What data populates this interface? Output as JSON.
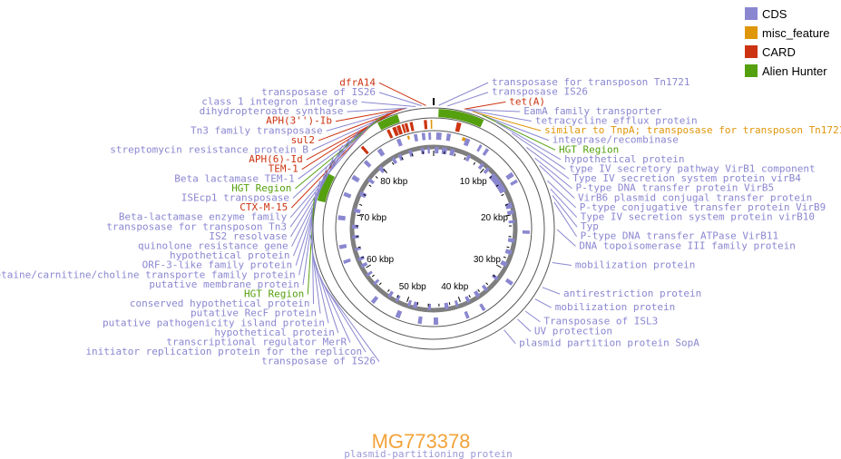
{
  "title": "MG773378",
  "subtitle": "plasmid-partitioning protein",
  "colors": {
    "cds": "#8a87d0",
    "misc": "#e0960a",
    "card": "#cc3311",
    "alien": "#55a00f",
    "title": "#f2a33a",
    "backbone": "#7f7f7f"
  },
  "legend": [
    {
      "label": "CDS",
      "type": "cds"
    },
    {
      "label": "misc_feature",
      "type": "misc"
    },
    {
      "label": "CARD",
      "type": "card"
    },
    {
      "label": "Alien Hunter",
      "type": "alien"
    }
  ],
  "kbp_marks": [
    {
      "label": "10 kbp",
      "kbp": 10
    },
    {
      "label": "20 kbp",
      "kbp": 20
    },
    {
      "label": "30 kbp",
      "kbp": 30
    },
    {
      "label": "40 kbp",
      "kbp": 40
    },
    {
      "label": "50 kbp",
      "kbp": 50
    },
    {
      "label": "60 kbp",
      "kbp": 60
    },
    {
      "label": "70 kbp",
      "kbp": 70
    },
    {
      "label": "80 kbp",
      "kbp": 80
    }
  ],
  "labels": [
    {
      "text": "transposase of IS26",
      "type": "cds",
      "pos": 88.6
    },
    {
      "text": "transposase IS26",
      "type": "cds",
      "pos": 1.6
    },
    {
      "text": "APH(3'')-Ib",
      "type": "card",
      "pos": 86.7
    },
    {
      "text": "dihydropteroate synthase",
      "type": "cds",
      "pos": 86.9
    },
    {
      "text": "class 1 integron integrase",
      "type": "cds",
      "pos": 87.9
    },
    {
      "text": "EamA family transporter",
      "type": "cds",
      "pos": 3.8
    },
    {
      "text": "tet(A)",
      "type": "card",
      "pos": 3.6
    },
    {
      "text": "transposase for transposon Tn1721",
      "type": "cds",
      "pos": 0.6
    },
    {
      "text": "streptomycin resistance protein B",
      "type": "cds",
      "pos": 85.9
    },
    {
      "text": "integrase/recombinase",
      "type": "cds",
      "pos": 4.9
    },
    {
      "text": "dfrA14",
      "type": "card",
      "pos": 89.1
    },
    {
      "text": "tetracycline efflux protein",
      "type": "cds",
      "pos": 3.9
    },
    {
      "text": "Tn3 family transposase",
      "type": "cds",
      "pos": 86.3
    },
    {
      "text": "sul2",
      "type": "card",
      "pos": 86.2
    },
    {
      "text": "similar to TnpA; transposase for transposon Tn1721",
      "type": "misc",
      "pos": 4.6
    },
    {
      "text": "Beta lactamase TEM-1",
      "type": "cds",
      "pos": 84.5
    },
    {
      "text": "APH(6)-Id",
      "type": "card",
      "pos": 85.6
    },
    {
      "text": "HGT Region",
      "type": "alien",
      "pos": 5.8
    },
    {
      "text": "CTX-M-15",
      "type": "card",
      "pos": 83.2
    },
    {
      "text": "TEM-1",
      "type": "card",
      "pos": 84.6
    },
    {
      "text": "ISEcp1 transposase",
      "type": "cds",
      "pos": 83.4
    },
    {
      "text": "HGT Region",
      "type": "alien",
      "pos": 83.9
    },
    {
      "text": "hypothetical protein",
      "type": "cds",
      "pos": 7.6
    },
    {
      "text": "Beta-lactamase enzyme family",
      "type": "cds",
      "pos": 82.7
    },
    {
      "text": "type IV secretory pathway VirB1 component",
      "type": "cds",
      "pos": 9.8
    },
    {
      "text": "transposase for transposon Tn3",
      "type": "cds",
      "pos": 80.7
    },
    {
      "text": "Type IV secretion system protein virB4",
      "type": "cds",
      "pos": 12.2
    },
    {
      "text": "IS2 resolvase",
      "type": "cds",
      "pos": 79.4
    },
    {
      "text": "P-type DNA transfer protein VirB5",
      "type": "cds",
      "pos": 13.8
    },
    {
      "text": "quinolone resistance gene",
      "type": "cds",
      "pos": 78.1
    },
    {
      "text": "VirB6 plasmid conjugal transfer protein",
      "type": "cds",
      "pos": 14.8
    },
    {
      "text": "hypothetical protein",
      "type": "cds",
      "pos": 76.5
    },
    {
      "text": "P-type conjugative transfer protein VirB9",
      "type": "cds",
      "pos": 16.8
    },
    {
      "text": "Type IV secretion system protein virB10",
      "type": "cds",
      "pos": 17.8
    },
    {
      "text": "Typ",
      "type": "cds",
      "pos": 18.6
    },
    {
      "text": "ORF-3-like family protein",
      "type": "cds",
      "pos": 75.0
    },
    {
      "text": "P-type DNA transfer ATPase VirB11",
      "type": "cds",
      "pos": 19.4
    },
    {
      "text": "etaine/carnitine/choline transporte family protein",
      "type": "cds",
      "pos": 73.2
    },
    {
      "text": "putative membrane protein",
      "type": "cds",
      "pos": 71.8
    },
    {
      "text": "DNA topoisomerase III family protein",
      "type": "cds",
      "pos": 22.6
    },
    {
      "text": "HGT Region",
      "type": "alien",
      "pos": 71.1
    },
    {
      "text": "conserved hypothetical protein",
      "type": "cds",
      "pos": 69.8
    },
    {
      "text": "mobilization protein",
      "type": "cds",
      "pos": 26.5
    },
    {
      "text": "antirestriction protein",
      "type": "cds",
      "pos": 29.6
    },
    {
      "text": "putative RecF protein",
      "type": "cds",
      "pos": 66.8
    },
    {
      "text": "mobilization protein",
      "type": "cds",
      "pos": 31.2
    },
    {
      "text": "putative pathogenicity island protein",
      "type": "cds",
      "pos": 64.8
    },
    {
      "text": "UV protection",
      "type": "cds",
      "pos": 34.3
    },
    {
      "text": "plasmid partition protein SopA",
      "type": "cds",
      "pos": 36.3
    },
    {
      "text": "hypothetical protein",
      "type": "cds",
      "pos": 63.7
    },
    {
      "text": "Transposase of ISL3",
      "type": "cds",
      "pos": 33.0
    },
    {
      "text": "transcriptional regulator MerR",
      "type": "cds",
      "pos": 62.1
    },
    {
      "text": "initiator replication protein for the replicon",
      "type": "cds",
      "pos": 61.0
    },
    {
      "text": "transposase of IS26",
      "type": "cds",
      "pos": 60.4
    }
  ],
  "tracks": {
    "alien": [
      [
        0.6,
        6.2
      ],
      [
        83.0,
        85.6
      ],
      [
        70.9,
        74.4
      ]
    ],
    "card": [
      [
        83.6,
        84.0
      ],
      [
        84.4,
        84.9
      ],
      [
        85.0,
        85.5
      ],
      [
        85.7,
        86.0
      ],
      [
        86.1,
        86.5
      ],
      [
        86.8,
        87.2
      ],
      [
        88.7,
        89.1
      ],
      [
        3.1,
        3.7
      ],
      [
        79.5,
        79.9
      ]
    ],
    "misc_outer": [
      [
        89.6,
        89.8
      ]
    ],
    "misc_inner": [
      [
        4.4,
        4.9
      ],
      [
        86.0,
        86.3
      ]
    ],
    "cds_forward": [
      [
        0.4,
        1.2
      ],
      [
        2.0,
        2.6
      ],
      [
        4.9,
        5.6
      ],
      [
        7.2,
        7.6
      ],
      [
        8.3,
        8.8
      ],
      [
        13.5,
        14.2
      ],
      [
        14.8,
        15.3
      ],
      [
        22.8,
        23.3
      ],
      [
        31.0,
        31.6
      ],
      [
        36.8,
        37.3
      ],
      [
        39.5,
        40.0
      ],
      [
        44.3,
        45.0
      ],
      [
        46.8,
        47.4
      ],
      [
        50.2,
        50.9
      ],
      [
        54.6,
        55.2
      ],
      [
        62.1,
        62.6
      ],
      [
        64.4,
        65.0
      ],
      [
        68.8,
        69.5
      ],
      [
        72.5,
        73.1
      ],
      [
        75.3,
        76.0
      ],
      [
        78.3,
        78.9
      ],
      [
        81.0,
        81.7
      ],
      [
        84.3,
        84.9
      ],
      [
        87.0,
        87.5
      ],
      [
        88.2,
        88.7
      ],
      [
        89.2,
        89.6
      ]
    ],
    "cds_reverse": [
      [
        0.2,
        0.9
      ],
      [
        1.5,
        2.4
      ],
      [
        3.0,
        3.8
      ],
      [
        6.2,
        6.8
      ],
      [
        9.0,
        9.6
      ],
      [
        10.3,
        10.9
      ],
      [
        11.8,
        15.6
      ],
      [
        17.8,
        18.8
      ],
      [
        19.2,
        19.9
      ],
      [
        21.0,
        21.5
      ],
      [
        24.3,
        25.0
      ],
      [
        26.4,
        27.2
      ],
      [
        28.7,
        29.5
      ],
      [
        31.8,
        32.4
      ],
      [
        34.5,
        35.1
      ],
      [
        36.3,
        37.0
      ],
      [
        38.3,
        38.9
      ],
      [
        40.5,
        41.0
      ],
      [
        42.3,
        43.0
      ],
      [
        45.5,
        46.0
      ],
      [
        48.0,
        48.7
      ],
      [
        49.2,
        49.7
      ],
      [
        51.5,
        52.0
      ],
      [
        53.0,
        53.6
      ],
      [
        56.5,
        57.0
      ],
      [
        58.5,
        59.0
      ],
      [
        60.3,
        60.9
      ],
      [
        61.6,
        62.2
      ],
      [
        63.5,
        64.0
      ],
      [
        65.7,
        66.3
      ],
      [
        67.5,
        68.2
      ],
      [
        70.4,
        71.1
      ],
      [
        73.5,
        74.3
      ],
      [
        76.5,
        77.1
      ],
      [
        79.3,
        80.0
      ],
      [
        82.2,
        82.8
      ],
      [
        83.5,
        84.1
      ],
      [
        85.5,
        86.1
      ],
      [
        87.7,
        88.3
      ],
      [
        88.9,
        89.3
      ]
    ]
  }
}
